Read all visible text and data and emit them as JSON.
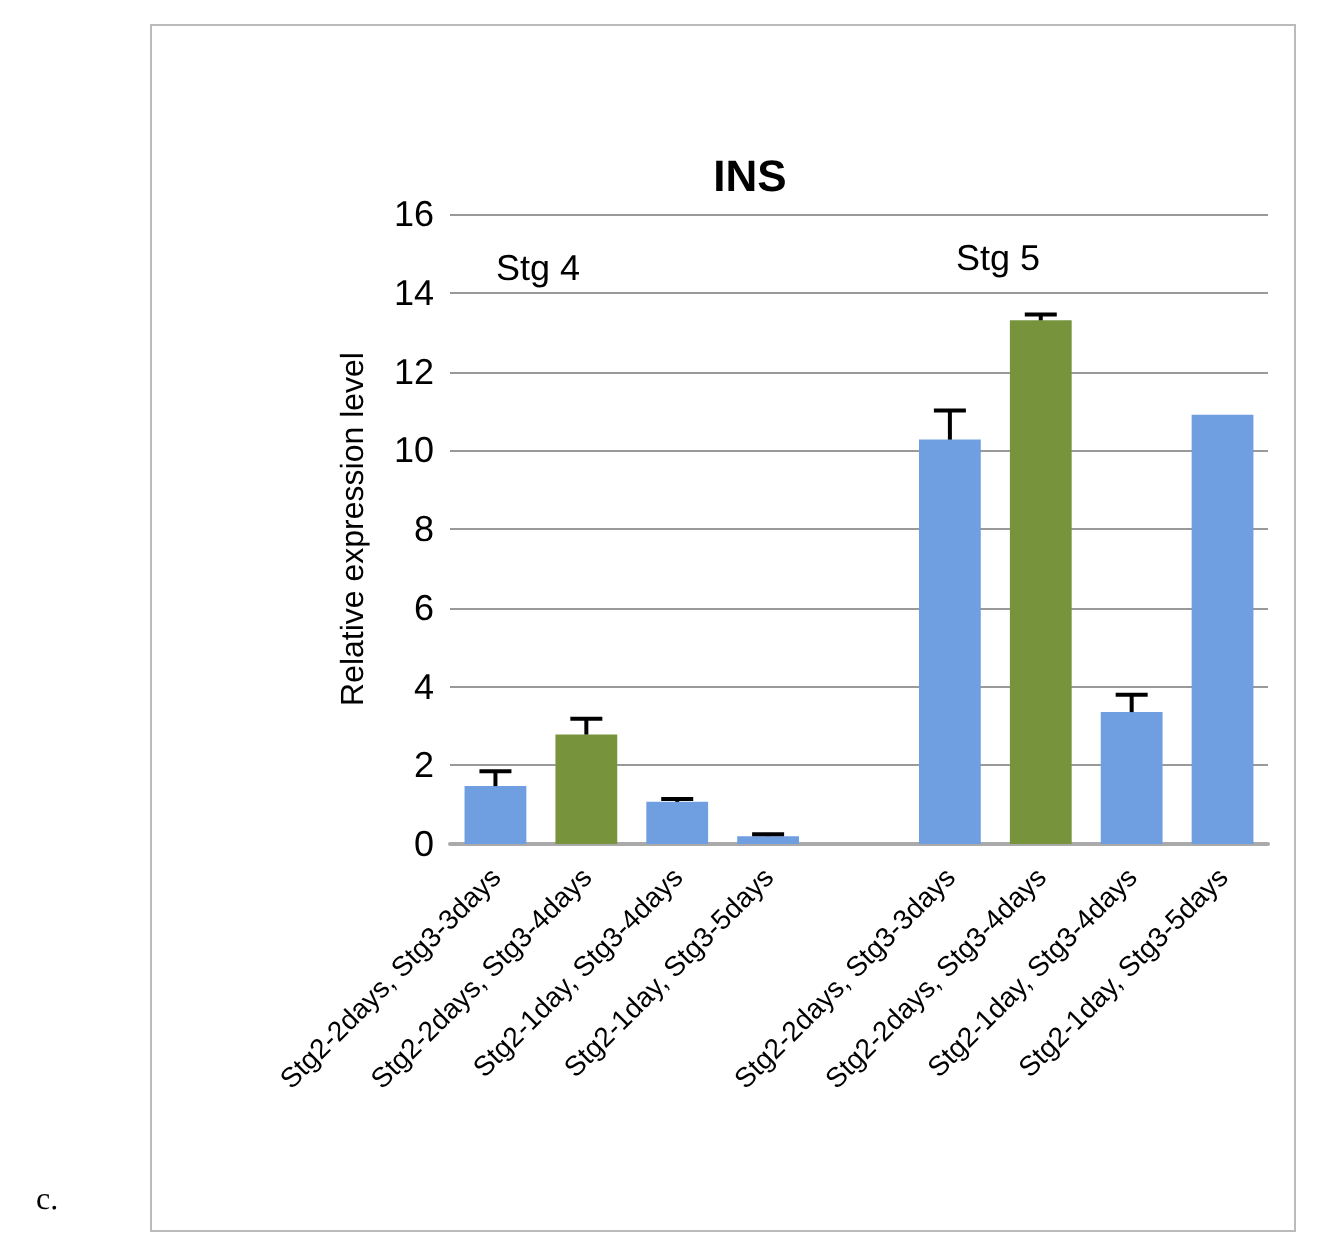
{
  "chart_data": {
    "type": "bar",
    "title": "INS",
    "ylabel": "Relative expression level",
    "categories": [
      "Stg2-2days, Stg3-3days",
      "Stg2-2days, Stg3-4days",
      "Stg2-1day, Stg3-4days",
      "Stg2-1day, Stg3-5days",
      null,
      "Stg2-2days, Stg3-3days",
      "Stg2-2days, Stg3-4days",
      "Stg2-1day, Stg3-4days",
      "Stg2-1day, Stg3-5days"
    ],
    "values": [
      1.47,
      2.78,
      1.07,
      0.2,
      null,
      10.27,
      13.3,
      3.35,
      10.9
    ],
    "errors": [
      0.38,
      0.4,
      0.07,
      0.05,
      null,
      0.74,
      0.15,
      0.44,
      null
    ],
    "colors": [
      "#6f9fe0",
      "#77933c",
      "#6f9fe0",
      "#6f9fe0",
      "#6f9fe0",
      "#6f9fe0",
      "#77933c",
      "#6f9fe0",
      "#6f9fe0"
    ],
    "ylim": [
      0,
      16
    ],
    "yticks": [
      0,
      2,
      4,
      6,
      8,
      10,
      12,
      14,
      16
    ],
    "grid": "y",
    "annotations": [
      "Stg 4",
      "Stg 5",
      "c."
    ]
  }
}
